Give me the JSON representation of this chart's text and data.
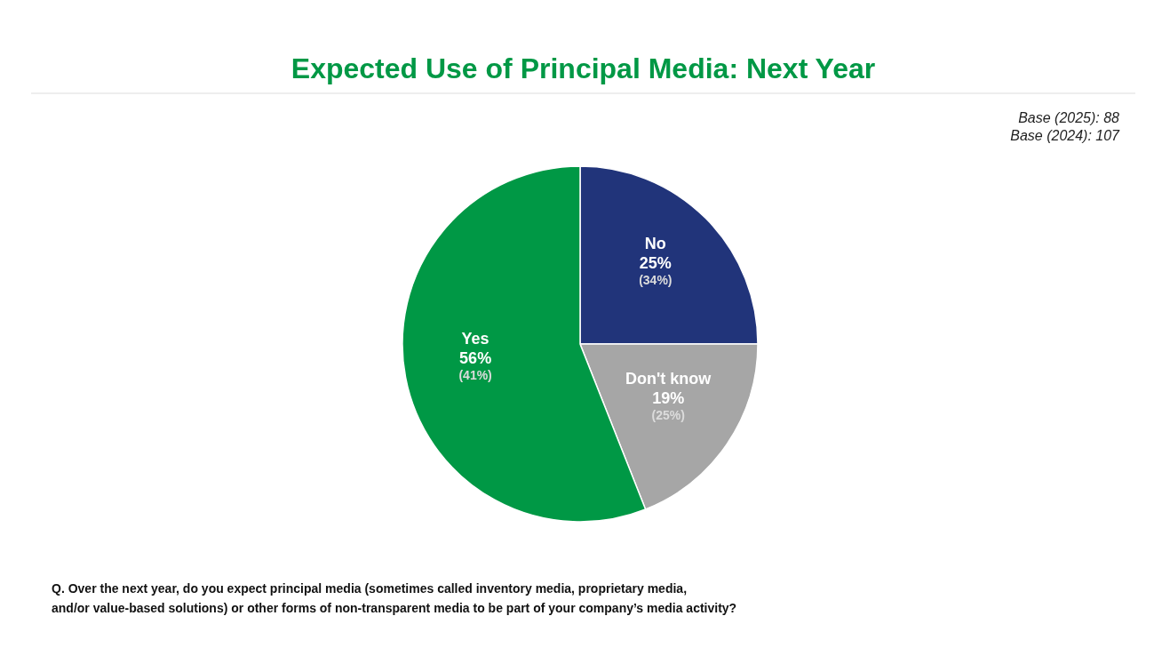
{
  "chart_data": {
    "type": "pie",
    "title": "Expected Use of Principal Media: Next Year",
    "categories": [
      "No",
      "Don't know",
      "Yes"
    ],
    "values": [
      25,
      19,
      56
    ],
    "colors": [
      "#21347a",
      "#a6a6a6",
      "#009845"
    ],
    "value_labels": [
      "25%",
      "19%",
      "56%"
    ],
    "annotations": [
      "Base (2025): 88",
      "Base (2024): 107",
      {
        "text": "(34%)",
        "x": "No"
      },
      {
        "text": "(25%)",
        "x": "Don't know"
      },
      {
        "text": "(41%)",
        "x": "Yes"
      },
      "Q. Over the next year, do you expect principal media (sometimes called inventory media, proprietary media,\nand/or value-based solutions) or other forms of non-transparent media to be part of your company’s media activity?"
    ]
  }
}
